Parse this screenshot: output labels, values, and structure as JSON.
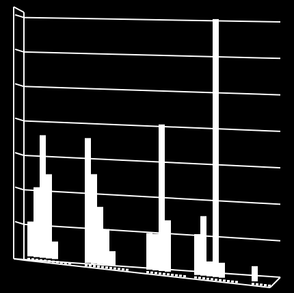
{
  "chart_data": {
    "type": "bar",
    "title": "",
    "xlabel": "",
    "ylabel": "",
    "grid": true,
    "style": "3d-perspective",
    "colors": {
      "background": "#000000",
      "axes": "#ffffff",
      "bars": "#ffffff",
      "gridlines": "#ffffff"
    },
    "ylim": [
      0,
      7
    ],
    "gridline_count": 7,
    "groups": [
      {
        "bars": [
          1.0,
          2.0,
          3.5,
          2.4,
          0.5
        ]
      },
      {
        "bars": [
          3.5,
          2.5,
          1.6,
          1.0,
          0.4
        ]
      },
      {
        "bars": [
          1.0,
          1.0,
          4.0,
          1.4
        ]
      },
      {
        "bars": [
          1.1,
          1.6,
          0.4,
          6.9,
          0.4
        ]
      },
      {
        "bars": [
          0.4
        ]
      }
    ]
  }
}
